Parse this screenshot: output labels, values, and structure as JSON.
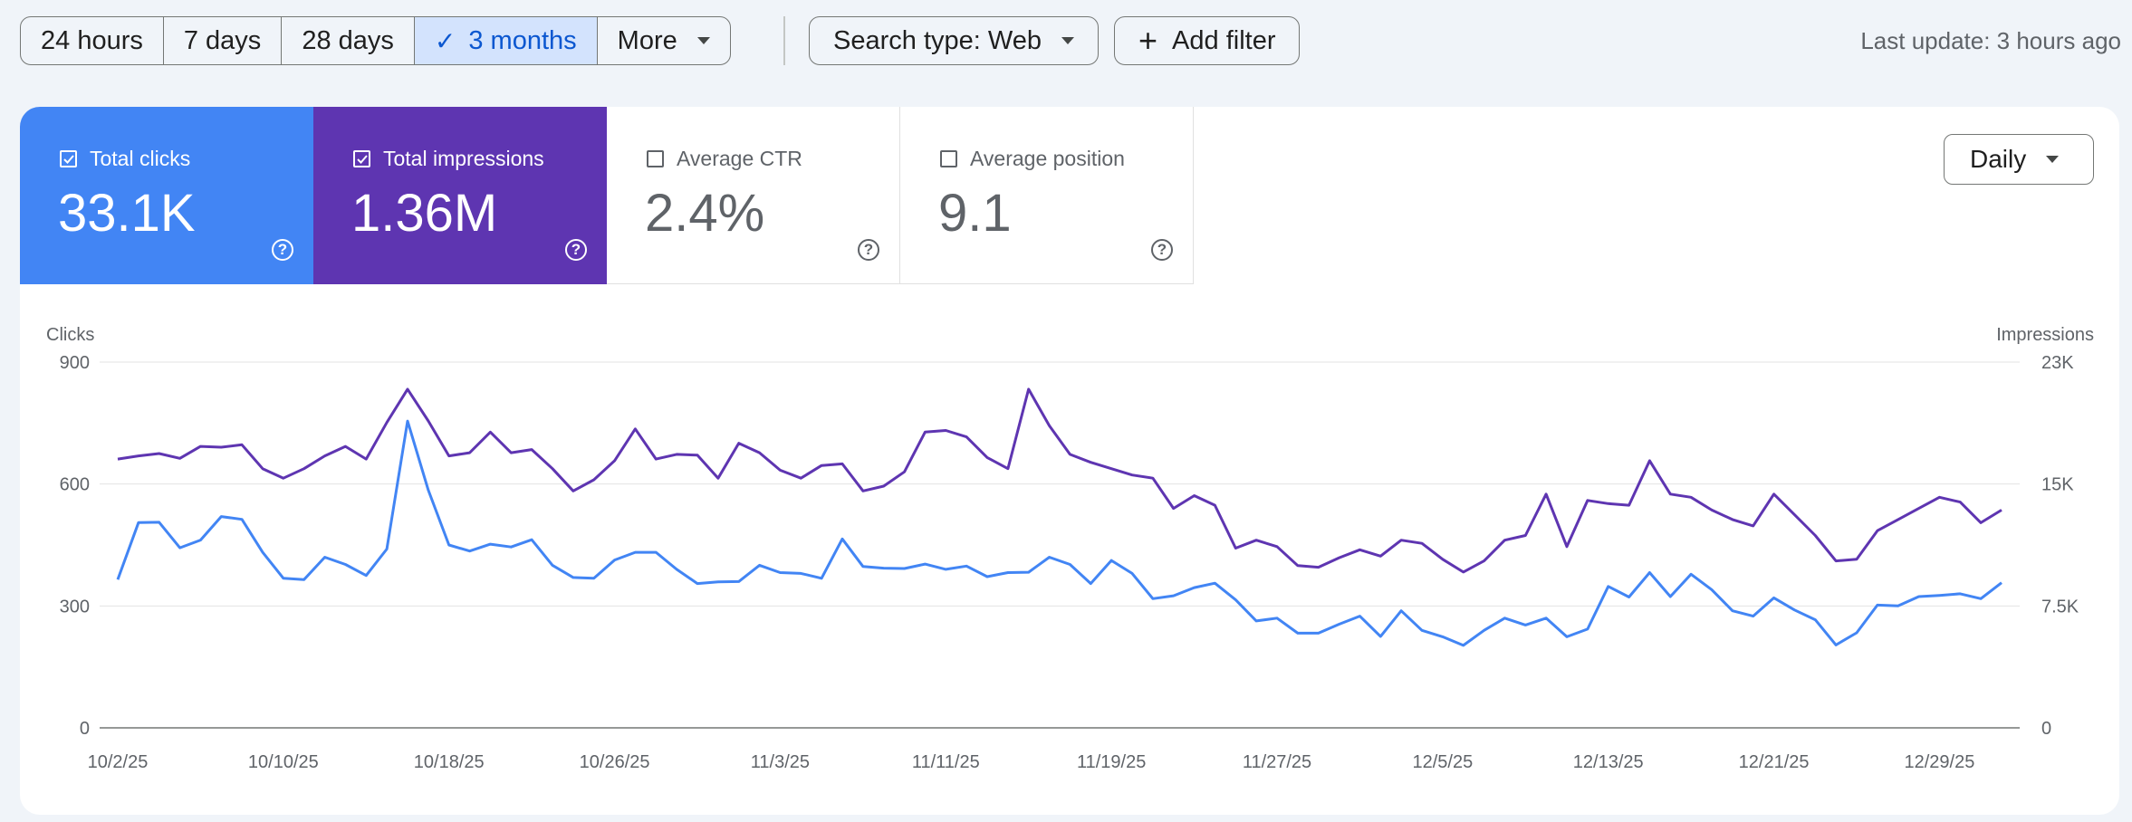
{
  "toolbar": {
    "ranges": [
      "24 hours",
      "7 days",
      "28 days",
      "3 months"
    ],
    "selected_range": "3 months",
    "more_label": "More",
    "search_type_label": "Search type: Web",
    "add_filter_label": "Add filter",
    "last_update": "Last update: 3 hours ago"
  },
  "metrics": {
    "clicks": {
      "label": "Total clicks",
      "value": "33.1K",
      "checked": true
    },
    "impressions": {
      "label": "Total impressions",
      "value": "1.36M",
      "checked": true
    },
    "ctr": {
      "label": "Average CTR",
      "value": "2.4%",
      "checked": false
    },
    "position": {
      "label": "Average position",
      "value": "9.1",
      "checked": false
    }
  },
  "granularity": "Daily",
  "colors": {
    "clicks": "#4285f4",
    "impressions": "#5e35b1",
    "accent_bg": "#d3e3fd"
  },
  "chart_data": {
    "type": "line",
    "ylabel_left": "Clicks",
    "ylabel_right": "Impressions",
    "y_left_ticks": [
      "0",
      "300",
      "600",
      "900"
    ],
    "y_right_ticks": [
      "0",
      "7.5K",
      "15K",
      "23K"
    ],
    "ylim_left": [
      0,
      900
    ],
    "ylim_right": [
      0,
      23000
    ],
    "x_tick_labels": [
      "10/2/25",
      "10/10/25",
      "10/18/25",
      "10/26/25",
      "11/3/25",
      "11/11/25",
      "11/19/25",
      "11/27/25",
      "12/5/25",
      "12/13/25",
      "12/21/25",
      "12/29/25"
    ],
    "grid": true,
    "series": [
      {
        "name": "Clicks",
        "axis": "left",
        "values": [
          365,
          505,
          506,
          443,
          462,
          520,
          513,
          432,
          368,
          365,
          420,
          402,
          375,
          440,
          755,
          585,
          450,
          435,
          452,
          445,
          463,
          400,
          370,
          368,
          413,
          432,
          432,
          390,
          355,
          359,
          360,
          400,
          382,
          380,
          368,
          465,
          397,
          393,
          392,
          403,
          390,
          398,
          372,
          382,
          383,
          420,
          402,
          355,
          412,
          380,
          318,
          325,
          345,
          356,
          315,
          263,
          270,
          233,
          233,
          255,
          275,
          225,
          288,
          240,
          224,
          203,
          240,
          270,
          253,
          270,
          224,
          243,
          348,
          322,
          382,
          323,
          378,
          340,
          288,
          275,
          320,
          290,
          266,
          204,
          234,
          302,
          300,
          323,
          326,
          330,
          318,
          357
        ]
      },
      {
        "name": "Impressions",
        "axis": "right",
        "values": [
          16900,
          17100,
          17250,
          16950,
          17700,
          17650,
          17800,
          16300,
          15700,
          16300,
          17100,
          17700,
          16900,
          19200,
          21300,
          19300,
          17100,
          17300,
          18600,
          17300,
          17500,
          16300,
          14900,
          15600,
          16800,
          18800,
          16900,
          17200,
          17150,
          15700,
          17900,
          17300,
          16200,
          15700,
          16500,
          16600,
          14900,
          15200,
          16100,
          18600,
          18700,
          18300,
          17000,
          16300,
          21300,
          19000,
          17200,
          16700,
          16300,
          15900,
          15700,
          13800,
          14600,
          14000,
          11300,
          11800,
          11400,
          10200,
          10100,
          10700,
          11200,
          10800,
          11800,
          11600,
          10600,
          9800,
          10500,
          11800,
          12100,
          14700,
          11400,
          14300,
          14100,
          14000,
          16800,
          14700,
          14500,
          13700,
          13100,
          12700,
          14700,
          13400,
          12100,
          10500,
          10600,
          12400,
          13100,
          13800,
          14500,
          14200,
          12900,
          13700
        ]
      }
    ]
  }
}
